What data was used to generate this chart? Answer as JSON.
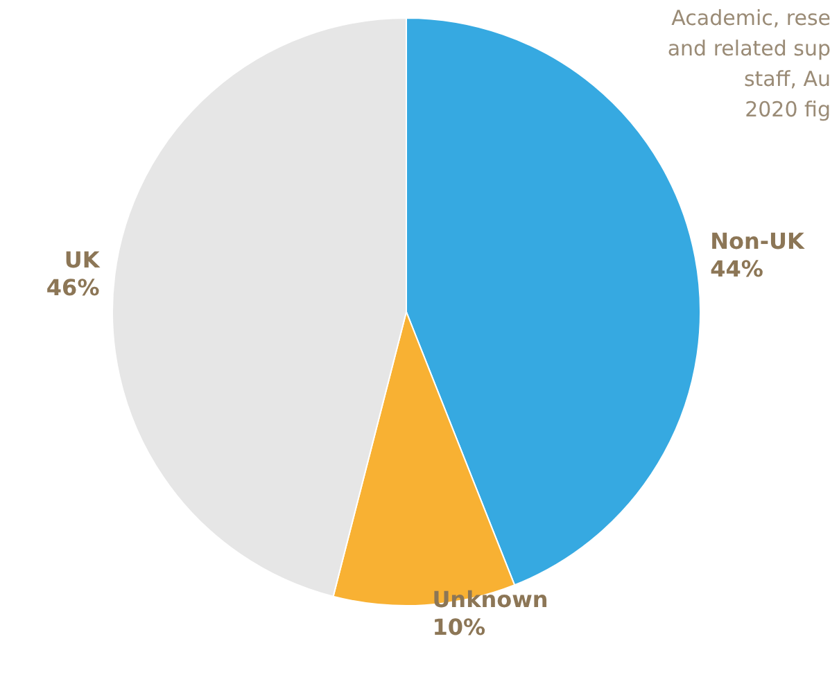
{
  "chart_data": {
    "type": "pie",
    "categories": [
      "Non-UK",
      "Unknown",
      "UK"
    ],
    "values": [
      44,
      10,
      46
    ],
    "colors": [
      "#36a9e1",
      "#f8b133",
      "#e6e6e6"
    ],
    "value_labels": [
      "44%",
      "10%",
      "46%"
    ],
    "legend": false,
    "annotations": [
      "Academic, rese\nand related sup\nstaff, Au\n2020 fig"
    ]
  }
}
